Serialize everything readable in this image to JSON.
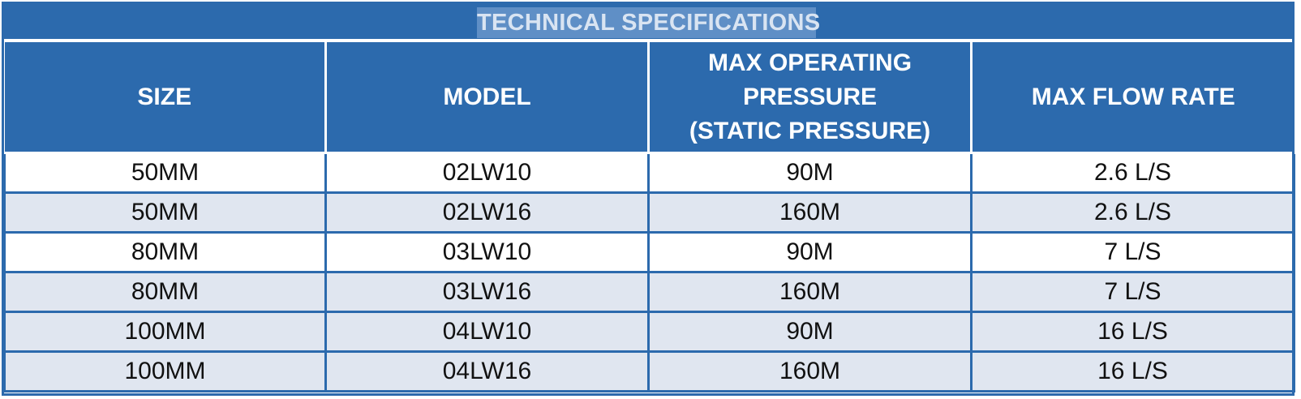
{
  "title": "TECHNICAL SPECIFICATIONS",
  "columns": [
    {
      "lines": [
        "SIZE"
      ]
    },
    {
      "lines": [
        "MODEL"
      ]
    },
    {
      "lines": [
        "MAX OPERATING",
        "PRESSURE",
        "(STATIC PRESSURE)"
      ]
    },
    {
      "lines": [
        "MAX FLOW RATE"
      ]
    }
  ],
  "rows": [
    {
      "size": "50MM",
      "model": "02LW10",
      "pressure": "90M",
      "flow": "2.6 L/S"
    },
    {
      "size": "50MM",
      "model": "02LW16",
      "pressure": "160M",
      "flow": "2.6 L/S"
    },
    {
      "size": "80MM",
      "model": "03LW10",
      "pressure": "90M",
      "flow": "7 L/S"
    },
    {
      "size": "80MM",
      "model": "03LW16",
      "pressure": "160M",
      "flow": "7 L/S"
    },
    {
      "size": "100MM",
      "model": "04LW10",
      "pressure": "90M",
      "flow": "16 L/S"
    },
    {
      "size": "100MM",
      "model": "04LW16",
      "pressure": "160M",
      "flow": "16 L/S"
    }
  ],
  "colors": {
    "header_blue": "#2c6aad",
    "title_highlight": "#5f8fc6",
    "row_alt": "#e0e6f0"
  }
}
